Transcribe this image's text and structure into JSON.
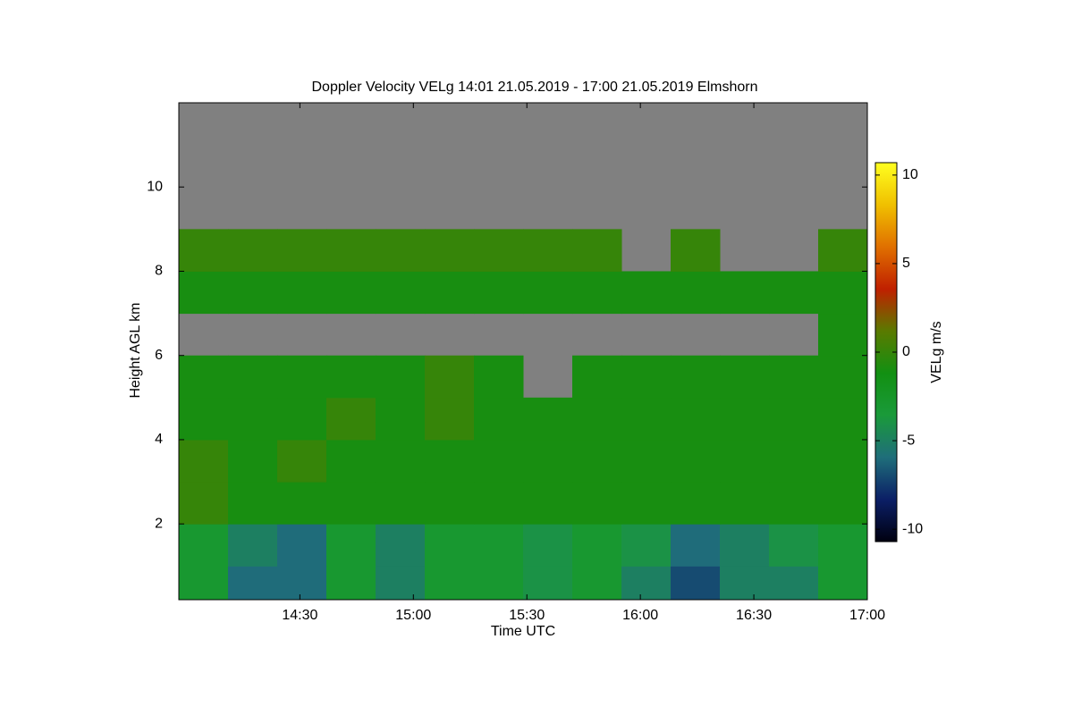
{
  "chart_data": {
    "type": "heatmap",
    "title": "Doppler Velocity VELg   14:01 21.05.2019 - 17:00 21.05.2019 Elmshorn",
    "x_label": "Time UTC",
    "y_label": "Height AGL km",
    "colorbar_label": "VELg m/s",
    "xlim": [
      838,
      1020
    ],
    "xticks": [
      {
        "value": 870,
        "label": "14:30"
      },
      {
        "value": 900,
        "label": "15:00"
      },
      {
        "value": 930,
        "label": "15:30"
      },
      {
        "value": 960,
        "label": "16:00"
      },
      {
        "value": 990,
        "label": "16:30"
      },
      {
        "value": 1020,
        "label": "17:00"
      }
    ],
    "ylim": [
      0.2,
      12
    ],
    "yticks": [
      2,
      4,
      6,
      8,
      10
    ],
    "clim": [
      -10.7,
      10.7
    ],
    "cticks": [
      -10,
      -5,
      0,
      5,
      10
    ],
    "colormap": [
      "#000010",
      "#0b1f66",
      "#1f6e7a",
      "#1a9a3a",
      "#129012",
      "#5a7a00",
      "#c02000",
      "#e07000",
      "#f0c000",
      "#ffff20"
    ],
    "nan_color": "#808080",
    "x_edges": [
      838,
      851,
      864,
      877,
      890,
      903,
      916,
      929,
      942,
      955,
      968,
      981,
      994,
      1007,
      1020
    ],
    "y_edges": [
      0.2,
      1,
      2,
      3,
      4,
      5,
      6,
      7,
      8,
      9,
      10,
      11,
      12
    ],
    "z": [
      [
        -3,
        -6,
        -6,
        -3,
        -5,
        -3,
        -3,
        -4,
        -3,
        -5,
        -7,
        -5,
        -5,
        -3
      ],
      [
        -3,
        -5,
        -6,
        -3,
        -5,
        -3,
        -3,
        -4,
        -3,
        -4,
        -6,
        -5,
        -4,
        -3
      ],
      [
        0,
        -1,
        -1,
        -1,
        -1,
        -1,
        -1,
        -1,
        -1,
        -1,
        -1,
        -1,
        -1,
        -1
      ],
      [
        0,
        -1,
        0,
        -1,
        -1,
        -1,
        -1,
        -1,
        -1,
        -1,
        -1,
        -1,
        -1,
        -1
      ],
      [
        -1,
        -1,
        -1,
        0,
        -1,
        0,
        -1,
        -1,
        -1,
        -1,
        -1,
        -1,
        -1,
        -1
      ],
      [
        -1,
        -1,
        -1,
        -1,
        -1,
        0,
        -1,
        null,
        -1,
        -1,
        -1,
        -1,
        -1,
        -1
      ],
      [
        null,
        null,
        null,
        null,
        null,
        null,
        null,
        null,
        null,
        null,
        null,
        null,
        null,
        -1
      ],
      [
        -1,
        -1,
        -1,
        -1,
        -1,
        -1,
        -1,
        -1,
        -1,
        -1,
        -1,
        -1,
        -1,
        -1
      ],
      [
        0,
        0,
        0,
        0,
        0,
        0,
        0,
        0,
        0,
        null,
        0,
        null,
        null,
        0
      ],
      [
        null,
        null,
        null,
        null,
        null,
        null,
        null,
        null,
        null,
        null,
        null,
        null,
        null,
        null
      ],
      [
        null,
        null,
        null,
        null,
        null,
        null,
        null,
        null,
        null,
        null,
        null,
        null,
        null,
        null
      ],
      [
        null,
        null,
        null,
        null,
        null,
        null,
        null,
        null,
        null,
        null,
        null,
        null,
        null,
        null
      ]
    ]
  }
}
